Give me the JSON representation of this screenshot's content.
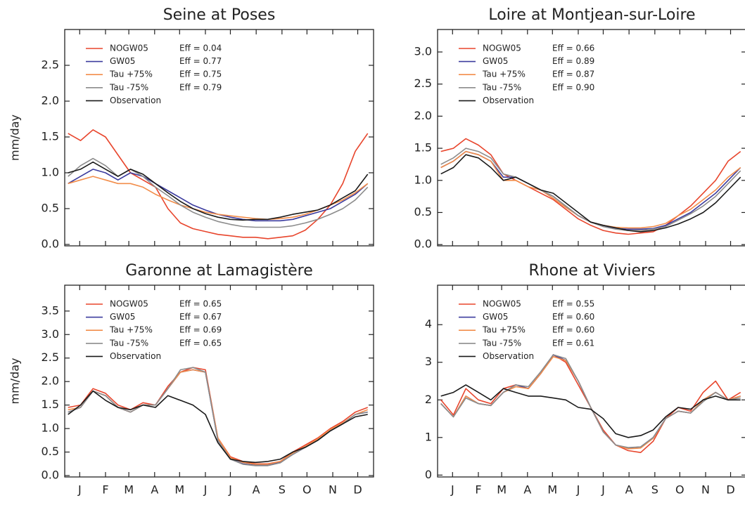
{
  "chart_data": [
    {
      "type": "line",
      "title": "Seine at Poses",
      "ylabel": "mm/day",
      "x": [
        1,
        16,
        31,
        46,
        61,
        76,
        91,
        106,
        121,
        136,
        151,
        166,
        181,
        196,
        211,
        226,
        241,
        256,
        271,
        286,
        301,
        316,
        331,
        346,
        361
      ],
      "xlim": [
        -3,
        368
      ],
      "xticks": [
        15,
        46,
        74,
        105,
        135,
        166,
        196,
        227,
        258,
        288,
        319,
        349
      ],
      "ylim": [
        -0.02,
        3.0
      ],
      "yticks": [
        {
          "value": 0,
          "label": "0.0"
        },
        0.5,
        {
          "value": 1,
          "label": "1.0"
        },
        1.5,
        {
          "value": 2,
          "label": "2.0"
        },
        2.5
      ],
      "legend": "upper left",
      "series": [
        {
          "name": "NOGW05",
          "annotation": "Eff = 0.04",
          "color": "#e8452c",
          "values": [
            1.55,
            1.45,
            1.6,
            1.5,
            1.25,
            1.0,
            0.9,
            0.8,
            0.5,
            0.3,
            0.22,
            0.18,
            0.14,
            0.12,
            0.1,
            0.1,
            0.08,
            0.1,
            0.12,
            0.2,
            0.35,
            0.55,
            0.85,
            1.3,
            1.55
          ]
        },
        {
          "name": "GW05",
          "annotation": "Eff = 0.77",
          "color": "#3b3b9e",
          "values": [
            0.85,
            0.95,
            1.05,
            1.0,
            0.9,
            1.0,
            0.95,
            0.85,
            0.75,
            0.65,
            0.55,
            0.48,
            0.42,
            0.38,
            0.35,
            0.33,
            0.33,
            0.33,
            0.35,
            0.4,
            0.45,
            0.5,
            0.6,
            0.7,
            0.85
          ]
        },
        {
          "name": "Tau +75%",
          "annotation": "Eff = 0.75",
          "color": "#f28d4a",
          "values": [
            0.85,
            0.9,
            0.95,
            0.9,
            0.85,
            0.85,
            0.8,
            0.7,
            0.62,
            0.55,
            0.5,
            0.45,
            0.42,
            0.4,
            0.38,
            0.36,
            0.35,
            0.36,
            0.38,
            0.42,
            0.48,
            0.55,
            0.62,
            0.72,
            0.85
          ]
        },
        {
          "name": "Tau -75%",
          "annotation": "Eff = 0.79",
          "color": "#8c8c8c",
          "values": [
            0.95,
            1.1,
            1.2,
            1.1,
            0.95,
            1.05,
            0.95,
            0.8,
            0.68,
            0.55,
            0.45,
            0.38,
            0.32,
            0.28,
            0.25,
            0.24,
            0.24,
            0.24,
            0.26,
            0.3,
            0.35,
            0.42,
            0.5,
            0.62,
            0.8
          ]
        },
        {
          "name": "Observation",
          "color": "#1a1a1a",
          "values": [
            1.0,
            1.05,
            1.15,
            1.05,
            0.95,
            1.05,
            0.98,
            0.85,
            0.72,
            0.6,
            0.5,
            0.43,
            0.38,
            0.35,
            0.34,
            0.35,
            0.35,
            0.38,
            0.42,
            0.45,
            0.48,
            0.55,
            0.65,
            0.75,
            0.98
          ]
        }
      ]
    },
    {
      "type": "line",
      "title": "Loire at Montjean-sur-Loire",
      "x": [
        1,
        16,
        31,
        46,
        61,
        76,
        91,
        106,
        121,
        136,
        151,
        166,
        181,
        196,
        211,
        226,
        241,
        256,
        271,
        286,
        301,
        316,
        331,
        346,
        361
      ],
      "xlim": [
        -3,
        368
      ],
      "xticks": [
        15,
        46,
        74,
        105,
        135,
        166,
        196,
        227,
        258,
        288,
        319,
        349
      ],
      "ylim": [
        -0.02,
        3.35
      ],
      "yticks": [
        {
          "value": 0,
          "label": "0.0"
        },
        0.5,
        {
          "value": 1,
          "label": "1.0"
        },
        1.5,
        {
          "value": 2,
          "label": "2.0"
        },
        2.5,
        {
          "value": 3,
          "label": "3.0"
        }
      ],
      "legend": "upper left",
      "series": [
        {
          "name": "NOGW05",
          "annotation": "Eff = 0.66",
          "color": "#e8452c",
          "values": [
            1.45,
            1.5,
            1.65,
            1.55,
            1.4,
            1.1,
            1.0,
            0.9,
            0.8,
            0.7,
            0.55,
            0.4,
            0.3,
            0.22,
            0.18,
            0.16,
            0.18,
            0.2,
            0.3,
            0.45,
            0.6,
            0.8,
            1.0,
            1.3,
            1.45
          ]
        },
        {
          "name": "GW05",
          "annotation": "Eff = 0.89",
          "color": "#3b3b9e",
          "values": [
            1.2,
            1.3,
            1.45,
            1.4,
            1.3,
            1.05,
            1.05,
            0.95,
            0.85,
            0.75,
            0.6,
            0.45,
            0.35,
            0.3,
            0.25,
            0.24,
            0.24,
            0.25,
            0.3,
            0.4,
            0.5,
            0.65,
            0.8,
            1.0,
            1.2
          ]
        },
        {
          "name": "Tau +75%",
          "annotation": "Eff = 0.87",
          "color": "#f28d4a",
          "values": [
            1.2,
            1.3,
            1.45,
            1.4,
            1.3,
            1.0,
            1.0,
            0.9,
            0.85,
            0.72,
            0.58,
            0.45,
            0.35,
            0.3,
            0.27,
            0.26,
            0.26,
            0.28,
            0.33,
            0.45,
            0.55,
            0.7,
            0.85,
            1.05,
            1.2
          ]
        },
        {
          "name": "Tau -75%",
          "annotation": "Eff = 0.90",
          "color": "#8c8c8c",
          "values": [
            1.25,
            1.35,
            1.5,
            1.45,
            1.35,
            1.1,
            1.05,
            0.95,
            0.85,
            0.75,
            0.6,
            0.45,
            0.35,
            0.28,
            0.24,
            0.22,
            0.22,
            0.24,
            0.28,
            0.38,
            0.48,
            0.6,
            0.75,
            0.95,
            1.15
          ]
        },
        {
          "name": "Observation",
          "color": "#1a1a1a",
          "values": [
            1.1,
            1.2,
            1.4,
            1.35,
            1.2,
            1.0,
            1.05,
            0.95,
            0.85,
            0.8,
            0.65,
            0.5,
            0.35,
            0.3,
            0.26,
            0.22,
            0.2,
            0.22,
            0.26,
            0.32,
            0.4,
            0.5,
            0.65,
            0.85,
            1.05
          ]
        }
      ]
    },
    {
      "type": "line",
      "title": "Garonne at Lamagistère",
      "ylabel": "mm/day",
      "x": [
        1,
        16,
        31,
        46,
        61,
        76,
        91,
        106,
        121,
        136,
        151,
        166,
        181,
        196,
        211,
        226,
        241,
        256,
        271,
        286,
        301,
        316,
        331,
        346,
        361
      ],
      "xlim": [
        -3,
        368
      ],
      "xticks": [
        {
          "value": 15,
          "label": "J"
        },
        {
          "value": 46,
          "label": "F"
        },
        {
          "value": 74,
          "label": "M"
        },
        {
          "value": 105,
          "label": "A"
        },
        {
          "value": 135,
          "label": "M"
        },
        {
          "value": 166,
          "label": "J"
        },
        {
          "value": 196,
          "label": "J"
        },
        {
          "value": 227,
          "label": "A"
        },
        {
          "value": 258,
          "label": "S"
        },
        {
          "value": 288,
          "label": "O"
        },
        {
          "value": 319,
          "label": "N"
        },
        {
          "value": 349,
          "label": "D"
        }
      ],
      "ylim": [
        -0.03,
        4.05
      ],
      "yticks": [
        {
          "value": 0,
          "label": "0.0"
        },
        0.5,
        {
          "value": 1,
          "label": "1.0"
        },
        1.5,
        {
          "value": 2,
          "label": "2.0"
        },
        2.5,
        {
          "value": 3,
          "label": "3.0"
        },
        3.5
      ],
      "legend": "upper left",
      "series": [
        {
          "name": "NOGW05",
          "annotation": "Eff = 0.65",
          "color": "#e8452c",
          "values": [
            1.45,
            1.5,
            1.85,
            1.75,
            1.5,
            1.4,
            1.55,
            1.5,
            1.9,
            2.2,
            2.3,
            2.25,
            0.8,
            0.4,
            0.3,
            0.25,
            0.25,
            0.3,
            0.5,
            0.65,
            0.8,
            1.0,
            1.15,
            1.35,
            1.45
          ]
        },
        {
          "name": "GW05",
          "annotation": "Eff = 0.67",
          "color": "#3b3b9e",
          "values": [
            1.35,
            1.45,
            1.8,
            1.7,
            1.45,
            1.35,
            1.5,
            1.5,
            1.85,
            2.2,
            2.25,
            2.2,
            0.75,
            0.35,
            0.25,
            0.22,
            0.22,
            0.28,
            0.45,
            0.6,
            0.75,
            0.95,
            1.1,
            1.3,
            1.35
          ]
        },
        {
          "name": "Tau +75%",
          "annotation": "Eff = 0.69",
          "color": "#f28d4a",
          "values": [
            1.4,
            1.45,
            1.8,
            1.7,
            1.45,
            1.35,
            1.5,
            1.5,
            1.85,
            2.2,
            2.25,
            2.2,
            0.8,
            0.38,
            0.28,
            0.24,
            0.24,
            0.3,
            0.48,
            0.62,
            0.78,
            0.98,
            1.12,
            1.3,
            1.4
          ]
        },
        {
          "name": "Tau -75%",
          "annotation": "Eff = 0.65",
          "color": "#8c8c8c",
          "values": [
            1.35,
            1.45,
            1.8,
            1.7,
            1.45,
            1.35,
            1.5,
            1.5,
            1.85,
            2.25,
            2.3,
            2.2,
            0.75,
            0.35,
            0.24,
            0.21,
            0.21,
            0.27,
            0.45,
            0.6,
            0.75,
            0.95,
            1.1,
            1.3,
            1.35
          ]
        },
        {
          "name": "Observation",
          "color": "#1a1a1a",
          "values": [
            1.3,
            1.5,
            1.8,
            1.6,
            1.45,
            1.4,
            1.5,
            1.45,
            1.7,
            1.6,
            1.5,
            1.3,
            0.7,
            0.35,
            0.3,
            0.28,
            0.3,
            0.35,
            0.5,
            0.6,
            0.75,
            0.95,
            1.1,
            1.25,
            1.3
          ]
        }
      ]
    },
    {
      "type": "line",
      "title": "Rhone at Viviers",
      "x": [
        1,
        16,
        31,
        46,
        61,
        76,
        91,
        106,
        121,
        136,
        151,
        166,
        181,
        196,
        211,
        226,
        241,
        256,
        271,
        286,
        301,
        316,
        331,
        346,
        361
      ],
      "xlim": [
        -3,
        368
      ],
      "xticks": [
        {
          "value": 15,
          "label": "J"
        },
        {
          "value": 46,
          "label": "F"
        },
        {
          "value": 74,
          "label": "M"
        },
        {
          "value": 105,
          "label": "A"
        },
        {
          "value": 135,
          "label": "M"
        },
        {
          "value": 166,
          "label": "J"
        },
        {
          "value": 196,
          "label": "J"
        },
        {
          "value": 227,
          "label": "A"
        },
        {
          "value": 258,
          "label": "S"
        },
        {
          "value": 288,
          "label": "O"
        },
        {
          "value": 319,
          "label": "N"
        },
        {
          "value": 349,
          "label": "D"
        }
      ],
      "ylim": [
        -0.05,
        5.05
      ],
      "yticks": [
        0,
        1,
        2,
        3,
        4
      ],
      "legend": "upper left",
      "series": [
        {
          "name": "NOGW05",
          "annotation": "Eff = 0.55",
          "color": "#e8452c",
          "values": [
            2.0,
            1.6,
            2.3,
            2.0,
            1.9,
            2.3,
            2.4,
            2.3,
            2.7,
            3.2,
            3.0,
            2.4,
            1.8,
            1.2,
            0.8,
            0.65,
            0.6,
            0.9,
            1.5,
            1.8,
            1.7,
            2.2,
            2.5,
            2.0,
            2.2
          ]
        },
        {
          "name": "GW05",
          "annotation": "Eff = 0.60",
          "color": "#3b3b9e",
          "values": [
            1.9,
            1.55,
            2.1,
            1.9,
            1.85,
            2.2,
            2.4,
            2.3,
            2.7,
            3.2,
            3.05,
            2.5,
            1.8,
            1.15,
            0.8,
            0.72,
            0.75,
            1.0,
            1.5,
            1.7,
            1.65,
            2.0,
            2.2,
            2.0,
            2.1
          ]
        },
        {
          "name": "Tau +75%",
          "annotation": "Eff = 0.60",
          "color": "#f28d4a",
          "values": [
            1.9,
            1.55,
            2.1,
            1.9,
            1.85,
            2.2,
            2.35,
            2.3,
            2.7,
            3.15,
            3.05,
            2.5,
            1.8,
            1.15,
            0.8,
            0.7,
            0.72,
            0.98,
            1.5,
            1.7,
            1.65,
            2.0,
            2.2,
            2.0,
            2.1
          ]
        },
        {
          "name": "Tau -75%",
          "annotation": "Eff = 0.61",
          "color": "#8c8c8c",
          "values": [
            1.9,
            1.55,
            2.05,
            1.9,
            1.85,
            2.2,
            2.4,
            2.35,
            2.75,
            3.2,
            3.1,
            2.5,
            1.8,
            1.15,
            0.8,
            0.73,
            0.75,
            1.0,
            1.5,
            1.7,
            1.65,
            1.95,
            2.2,
            2.0,
            2.05
          ]
        },
        {
          "name": "Observation",
          "color": "#1a1a1a",
          "values": [
            2.1,
            2.2,
            2.4,
            2.2,
            2.0,
            2.3,
            2.2,
            2.1,
            2.1,
            2.05,
            2.0,
            1.8,
            1.75,
            1.5,
            1.1,
            1.0,
            1.05,
            1.2,
            1.55,
            1.8,
            1.75,
            2.0,
            2.1,
            2.0,
            2.0
          ]
        }
      ]
    }
  ]
}
